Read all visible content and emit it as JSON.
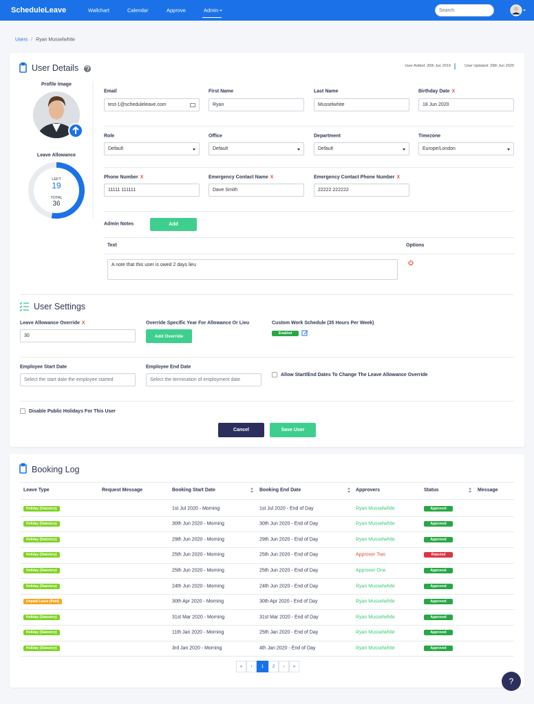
{
  "navbar": {
    "brand": "ScheduleLeave",
    "links": [
      {
        "label": "Wallchart"
      },
      {
        "label": "Calendar"
      },
      {
        "label": "Approve"
      },
      {
        "label": "Admin",
        "active": true,
        "dropdown": true
      }
    ],
    "search_placeholder": "Search"
  },
  "breadcrumb": {
    "parent": "Users",
    "current": "Ryan Musselwhite"
  },
  "user_details": {
    "title": "User Details",
    "user_added": "User Added: 20th Jun 2019",
    "user_updated": "User Updated: 29th Jun 2020",
    "profile_image_label": "Profile Image",
    "leave_allowance_label": "Leave Allowance",
    "left_label": "LEFT",
    "left": 19,
    "total_label": "TOTAL",
    "total": 36,
    "required_mark": "X",
    "fields": [
      {
        "label": "Email",
        "value": "test-1@scheduleleave.com",
        "kind": "email"
      },
      {
        "label": "First Name",
        "value": "Ryan"
      },
      {
        "label": "Last Name",
        "value": "Musselwhite"
      },
      {
        "label": "Birthday Date",
        "value": "18 Jun 2020",
        "required": true
      },
      {
        "label": "Role",
        "value": "Default",
        "kind": "select"
      },
      {
        "label": "Office",
        "value": "Default",
        "kind": "select"
      },
      {
        "label": "Department",
        "value": "Default",
        "kind": "select"
      },
      {
        "label": "Timezone",
        "value": "Europe/London",
        "kind": "select"
      },
      {
        "label": "Phone Number",
        "value": "11111 111111",
        "required": true
      },
      {
        "label": "Emergency Contact Name",
        "value": "Dave Smith",
        "required": true
      },
      {
        "label": "Emergency Contact Phone Number",
        "value": "22222 222222",
        "required": true
      }
    ],
    "admin_notes": {
      "label": "Admin Notes",
      "add_button": "Add",
      "columns": [
        "Text",
        "Options"
      ],
      "notes": [
        "A note that this user is owed 2 days lieu"
      ]
    }
  },
  "user_settings": {
    "title": "User Settings",
    "allowance_override_label": "Leave Allowance Override",
    "allowance_override_value": "30",
    "override_year_label": "Override Specific Year For Allowance Or Lieu",
    "add_override_button": "Add Override",
    "work_schedule_label": "Custom Work Schedule (35 Hours Per Week)",
    "work_schedule_status": "Enabled",
    "start_date_label": "Employee Start Date",
    "start_date_placeholder": "Select the start date the employee started",
    "end_date_label": "Employee End Date",
    "end_date_placeholder": "Select the termination of employment date",
    "allow_dates_label": "Allow Start/End Dates To Change The Leave Allowance Override",
    "disable_holidays_label": "Disable Public Holidays For This User",
    "cancel_button": "Cancel",
    "save_button": "Save User"
  },
  "booking_log": {
    "title": "Booking Log",
    "columns": [
      {
        "label": "Leave Type"
      },
      {
        "label": "Request Message"
      },
      {
        "label": "Booking Start Date",
        "sortable": true
      },
      {
        "label": "Booking End Date",
        "sortable": true
      },
      {
        "label": "Approvers"
      },
      {
        "label": "Status",
        "sortable": true
      },
      {
        "label": "Message"
      }
    ],
    "rows": [
      {
        "leave_type": "Holiday (Statutory)",
        "type_color": "#7ed321",
        "start": "1st Jul 2020 - Morning",
        "end": "1st Jul 2020 - End of Day",
        "approver": "Ryan Musselwhite",
        "approver_color": "#2ecc71",
        "status": "Approved",
        "status_color": "#28a745"
      },
      {
        "leave_type": "Holiday (Statutory)",
        "type_color": "#7ed321",
        "start": "30th Jun 2020 - Morning",
        "end": "30th Jun 2020 - End of Day",
        "approver": "Ryan Musselwhite",
        "approver_color": "#2ecc71",
        "status": "Approved",
        "status_color": "#28a745"
      },
      {
        "leave_type": "Holiday (Statutory)",
        "type_color": "#7ed321",
        "start": "29th Jun 2020 - Morning",
        "end": "29th Jun 2020 - End of Day",
        "approver": "Ryan Musselwhite",
        "approver_color": "#2ecc71",
        "status": "Approved",
        "status_color": "#28a745"
      },
      {
        "leave_type": "Holiday (Statutory)",
        "type_color": "#7ed321",
        "start": "25th Jun 2020 - Morning",
        "end": "25th Jun 2020 - End of Day",
        "approver": "Approver Two",
        "approver_color": "#e74c3c",
        "status": "Rejected",
        "status_color": "#dc3545"
      },
      {
        "leave_type": "Holiday (Statutory)",
        "type_color": "#7ed321",
        "start": "25th Jun 2020 - Morning",
        "end": "25th Jun 2020 - End of Day",
        "approver": "Approver One",
        "approver_color": "#2ecc71",
        "status": "Approved",
        "status_color": "#28a745"
      },
      {
        "leave_type": "Holiday (Statutory)",
        "type_color": "#7ed321",
        "start": "24th Jun 2020 - Morning",
        "end": "24th Jun 2020 - End of Day",
        "approver": "Ryan Musselwhite",
        "approver_color": "#2ecc71",
        "status": "Approved",
        "status_color": "#28a745"
      },
      {
        "leave_type": "Unpaid Leave (Paid)",
        "type_color": "#f5a623",
        "start": "30th Apr 2020 - Morning",
        "end": "30th Apr 2020 - End of Day",
        "approver": "Ryan Musselwhite",
        "approver_color": "#2ecc71",
        "status": "Approved",
        "status_color": "#28a745"
      },
      {
        "leave_type": "Holiday (Statutory)",
        "type_color": "#7ed321",
        "start": "31st Mar 2020 - Morning",
        "end": "31st Mar 2020 - End of Day",
        "approver": "Ryan Musselwhite",
        "approver_color": "#2ecc71",
        "status": "Approved",
        "status_color": "#28a745"
      },
      {
        "leave_type": "Holiday (Statutory)",
        "type_color": "#7ed321",
        "start": "11th Jan 2020 - Morning",
        "end": "25th Jan 2020 - End of Day",
        "approver": "Ryan Musselwhite",
        "approver_color": "#2ecc71",
        "status": "Approved",
        "status_color": "#28a745"
      },
      {
        "leave_type": "Holiday (Statutory)",
        "type_color": "#7ed321",
        "start": "3rd Jan 2020 - Morning",
        "end": "4th Jan 2020 - End of Day",
        "approver": "Ryan Musselwhite",
        "approver_color": "#2ecc71",
        "status": "Approved",
        "status_color": "#28a745"
      }
    ],
    "pagination": [
      {
        "label": "«"
      },
      {
        "label": "‹"
      },
      {
        "label": "1",
        "active": true
      },
      {
        "label": "2"
      },
      {
        "label": "›"
      },
      {
        "label": "»"
      }
    ]
  },
  "help_button": "?"
}
